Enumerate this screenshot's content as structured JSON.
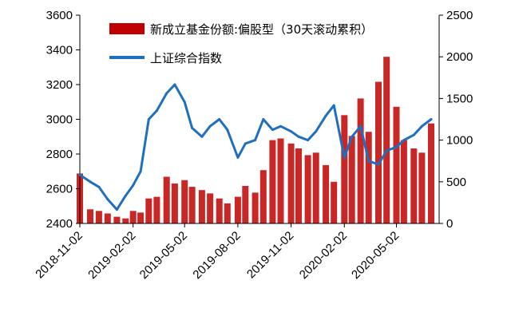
{
  "chart_data": {
    "type": "bar+line",
    "title": "",
    "legend_position": "top-center",
    "grid": false,
    "colors": {
      "bars": "#c00000",
      "line": "#1f6fbf"
    },
    "x_ticks": [
      "2018-11-02",
      "2019-02-02",
      "2019-05-02",
      "2019-08-02",
      "2019-11-02",
      "2020-02-02",
      "2020-05-02"
    ],
    "y_left": {
      "min": 2400,
      "max": 3600,
      "ticks": [
        "2400",
        "2600",
        "2800",
        "3000",
        "3200",
        "3400",
        "3600"
      ]
    },
    "y_right": {
      "min": 0,
      "max": 2500,
      "ticks": [
        "0",
        "500",
        "1000",
        "1500",
        "2000",
        "2500"
      ]
    },
    "series": [
      {
        "name": "新成立基金份额:偏股型（30天滚动累积）",
        "type": "bar",
        "axis": "right",
        "x": [
          "2018-11-02",
          "2018-11-20",
          "2018-12-05",
          "2018-12-20",
          "2019-01-05",
          "2019-01-20",
          "2019-02-02",
          "2019-02-15",
          "2019-03-01",
          "2019-03-15",
          "2019-04-01",
          "2019-04-15",
          "2019-05-02",
          "2019-05-15",
          "2019-06-01",
          "2019-06-15",
          "2019-07-01",
          "2019-07-15",
          "2019-08-02",
          "2019-08-15",
          "2019-09-01",
          "2019-09-15",
          "2019-10-01",
          "2019-10-15",
          "2019-11-02",
          "2019-11-15",
          "2019-12-01",
          "2019-12-15",
          "2020-01-01",
          "2020-01-15",
          "2020-02-02",
          "2020-02-15",
          "2020-03-01",
          "2020-03-15",
          "2020-04-01",
          "2020-04-15",
          "2020-05-02",
          "2020-05-15",
          "2020-06-01",
          "2020-06-15",
          "2020-07-01"
        ],
        "values": [
          600,
          170,
          150,
          120,
          80,
          60,
          150,
          130,
          300,
          320,
          560,
          480,
          520,
          440,
          400,
          360,
          300,
          240,
          320,
          450,
          370,
          640,
          1000,
          1020,
          960,
          900,
          820,
          850,
          700,
          500,
          1300,
          1050,
          1500,
          1100,
          1700,
          2000,
          1400,
          1000,
          900,
          850,
          1200
        ]
      },
      {
        "name": "上证综合指数",
        "type": "line",
        "axis": "left",
        "x": [
          "2018-11-02",
          "2018-11-20",
          "2018-12-05",
          "2018-12-20",
          "2019-01-05",
          "2019-01-20",
          "2019-02-02",
          "2019-02-15",
          "2019-03-01",
          "2019-03-15",
          "2019-04-01",
          "2019-04-15",
          "2019-05-02",
          "2019-05-15",
          "2019-06-01",
          "2019-06-15",
          "2019-07-01",
          "2019-07-15",
          "2019-08-02",
          "2019-08-15",
          "2019-09-01",
          "2019-09-15",
          "2019-10-01",
          "2019-10-15",
          "2019-11-02",
          "2019-11-15",
          "2019-12-01",
          "2019-12-15",
          "2020-01-01",
          "2020-01-15",
          "2020-02-02",
          "2020-02-15",
          "2020-03-01",
          "2020-03-15",
          "2020-04-01",
          "2020-04-15",
          "2020-05-02",
          "2020-05-15",
          "2020-06-01",
          "2020-06-15",
          "2020-07-01"
        ],
        "values": [
          2680,
          2640,
          2610,
          2540,
          2480,
          2560,
          2620,
          2700,
          3000,
          3050,
          3150,
          3200,
          3100,
          2950,
          2900,
          2960,
          3000,
          2940,
          2780,
          2860,
          2880,
          3000,
          2940,
          2960,
          2930,
          2900,
          2880,
          2930,
          3020,
          3080,
          2780,
          2900,
          2960,
          2760,
          2740,
          2820,
          2840,
          2880,
          2910,
          2960,
          3000
        ]
      }
    ]
  }
}
